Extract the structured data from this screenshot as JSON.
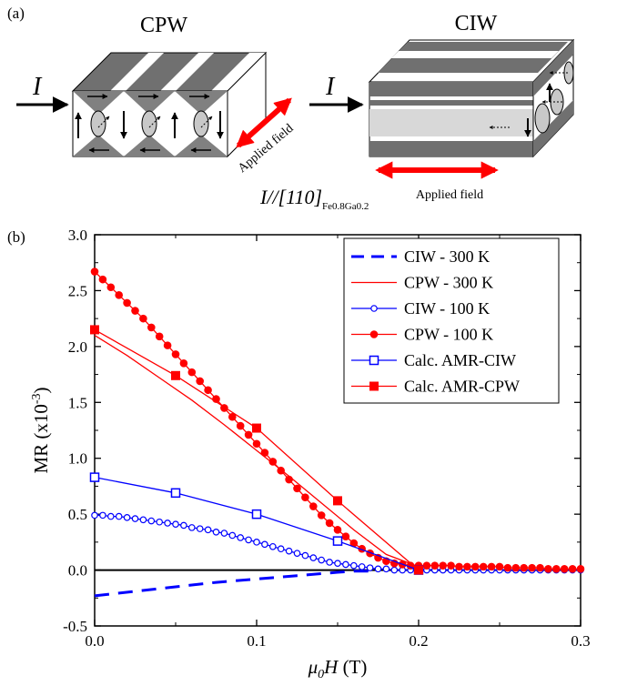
{
  "panel_a": {
    "label": "(a)",
    "cpw_title": "CPW",
    "ciw_title": "CIW",
    "current_symbol": "I",
    "applied_field_label": "Applied field",
    "direction_text": "I//[110]",
    "direction_subscript": "Fe0.8Ga0.2",
    "field_arrow_color": "#ff0000"
  },
  "panel_b": {
    "label": "(b)"
  },
  "chart_data": {
    "type": "line",
    "title": "",
    "xlabel": "μ0H (T)",
    "ylabel": "MR (x10-3)",
    "xlim": [
      0.0,
      0.3
    ],
    "ylim": [
      -0.5,
      3.0
    ],
    "xticks": [
      0.0,
      0.1,
      0.2,
      0.3
    ],
    "xtick_labels": [
      "0.0",
      "0.1",
      "0.2",
      "0.3"
    ],
    "yticks": [
      -0.5,
      0.0,
      0.5,
      1.0,
      1.5,
      2.0,
      2.5,
      3.0
    ],
    "ytick_labels": [
      "-0.5",
      "0.0",
      "0.5",
      "1.0",
      "1.5",
      "2.0",
      "2.5",
      "3.0"
    ],
    "grid": false,
    "zero_line": true,
    "legend_position": "top-right",
    "series": [
      {
        "name": "CIW - 300 K",
        "color": "#0000ff",
        "style": "dashed",
        "marker": "none",
        "x": [
          0.0,
          0.025,
          0.05,
          0.075,
          0.1,
          0.125,
          0.15,
          0.16,
          0.17
        ],
        "y": [
          -0.23,
          -0.19,
          -0.15,
          -0.11,
          -0.08,
          -0.05,
          -0.02,
          -0.01,
          -0.01
        ]
      },
      {
        "name": "CPW - 300 K",
        "color": "#ff0000",
        "style": "solid",
        "marker": "none",
        "x": [
          0.0,
          0.02,
          0.04,
          0.06,
          0.08,
          0.1,
          0.12,
          0.14,
          0.16,
          0.18,
          0.2
        ],
        "y": [
          2.1,
          1.92,
          1.72,
          1.52,
          1.3,
          1.07,
          0.84,
          0.6,
          0.36,
          0.14,
          0.03
        ]
      },
      {
        "name": "CIW - 100 K",
        "color": "#0000ff",
        "style": "solid",
        "marker": "open-circle",
        "x": [
          0.0,
          0.005,
          0.01,
          0.015,
          0.02,
          0.025,
          0.03,
          0.035,
          0.04,
          0.045,
          0.05,
          0.055,
          0.06,
          0.065,
          0.07,
          0.075,
          0.08,
          0.085,
          0.09,
          0.095,
          0.1,
          0.105,
          0.11,
          0.115,
          0.12,
          0.125,
          0.13,
          0.135,
          0.14,
          0.145,
          0.15,
          0.155,
          0.16,
          0.165,
          0.17,
          0.175,
          0.18,
          0.185,
          0.19,
          0.195,
          0.2,
          0.205,
          0.21,
          0.215,
          0.22,
          0.225,
          0.23,
          0.235,
          0.24,
          0.245,
          0.25,
          0.255,
          0.26,
          0.265,
          0.27,
          0.275,
          0.28,
          0.285,
          0.29,
          0.295,
          0.3
        ],
        "y": [
          0.49,
          0.49,
          0.48,
          0.48,
          0.47,
          0.46,
          0.45,
          0.44,
          0.43,
          0.42,
          0.41,
          0.4,
          0.38,
          0.37,
          0.36,
          0.34,
          0.33,
          0.31,
          0.29,
          0.27,
          0.25,
          0.23,
          0.21,
          0.19,
          0.17,
          0.15,
          0.13,
          0.11,
          0.09,
          0.07,
          0.06,
          0.05,
          0.04,
          0.03,
          0.02,
          0.01,
          0.01,
          0.0,
          0.0,
          0.0,
          0.0,
          0.0,
          0.0,
          0.0,
          0.0,
          0.0,
          0.0,
          0.0,
          0.0,
          0.0,
          0.0,
          0.0,
          0.0,
          0.0,
          0.0,
          0.0,
          0.0,
          0.0,
          0.0,
          0.0,
          0.0
        ]
      },
      {
        "name": "CPW - 100 K",
        "color": "#ff0000",
        "style": "solid",
        "marker": "filled-circle",
        "x": [
          0.0,
          0.005,
          0.01,
          0.015,
          0.02,
          0.025,
          0.03,
          0.035,
          0.04,
          0.045,
          0.05,
          0.055,
          0.06,
          0.065,
          0.07,
          0.075,
          0.08,
          0.085,
          0.09,
          0.095,
          0.1,
          0.105,
          0.11,
          0.115,
          0.12,
          0.125,
          0.13,
          0.135,
          0.14,
          0.145,
          0.15,
          0.155,
          0.16,
          0.165,
          0.17,
          0.175,
          0.18,
          0.185,
          0.19,
          0.195,
          0.2,
          0.205,
          0.21,
          0.215,
          0.22,
          0.225,
          0.23,
          0.235,
          0.24,
          0.245,
          0.25,
          0.255,
          0.26,
          0.265,
          0.27,
          0.275,
          0.28,
          0.285,
          0.29,
          0.295,
          0.3
        ],
        "y": [
          2.67,
          2.6,
          2.53,
          2.46,
          2.39,
          2.32,
          2.25,
          2.17,
          2.09,
          2.01,
          1.93,
          1.85,
          1.77,
          1.69,
          1.61,
          1.53,
          1.45,
          1.37,
          1.29,
          1.21,
          1.13,
          1.05,
          0.97,
          0.89,
          0.81,
          0.73,
          0.65,
          0.57,
          0.49,
          0.42,
          0.36,
          0.3,
          0.24,
          0.19,
          0.15,
          0.11,
          0.08,
          0.06,
          0.05,
          0.04,
          0.04,
          0.04,
          0.04,
          0.04,
          0.04,
          0.03,
          0.03,
          0.03,
          0.03,
          0.03,
          0.03,
          0.02,
          0.02,
          0.02,
          0.02,
          0.02,
          0.01,
          0.01,
          0.01,
          0.01,
          0.01
        ]
      },
      {
        "name": "Calc. AMR-CIW",
        "color": "#0000ff",
        "style": "solid",
        "marker": "open-square",
        "x": [
          0.0,
          0.05,
          0.1,
          0.15,
          0.2
        ],
        "y": [
          0.83,
          0.69,
          0.5,
          0.26,
          0.0
        ]
      },
      {
        "name": "Calc. AMR-CPW",
        "color": "#ff0000",
        "style": "solid",
        "marker": "filled-square",
        "x": [
          0.0,
          0.05,
          0.1,
          0.15,
          0.2
        ],
        "y": [
          2.15,
          1.74,
          1.27,
          0.62,
          0.0
        ]
      }
    ]
  }
}
